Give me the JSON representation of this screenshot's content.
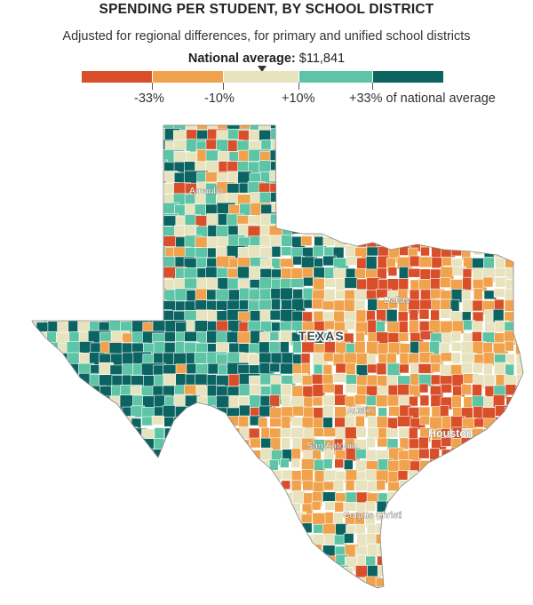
{
  "title": "SPENDING PER STUDENT, BY SCHOOL DISTRICT",
  "subtitle": "Adjusted for regional differences, for primary and unified school districts",
  "national_average": {
    "label": "National average:",
    "value": "$11,841"
  },
  "legend": {
    "colors": [
      "#d94f2a",
      "#f0a24c",
      "#e8e3bf",
      "#5ec4a6",
      "#0b6462"
    ],
    "ticks": [
      "-33%",
      "-10%",
      "+10%",
      "+33% of national average"
    ]
  },
  "map": {
    "state_label": "TEXAS",
    "cities": [
      "Amarillo",
      "Dallas",
      "Austin",
      "Houston",
      "San Antonio",
      "Corpus Christi"
    ]
  }
}
